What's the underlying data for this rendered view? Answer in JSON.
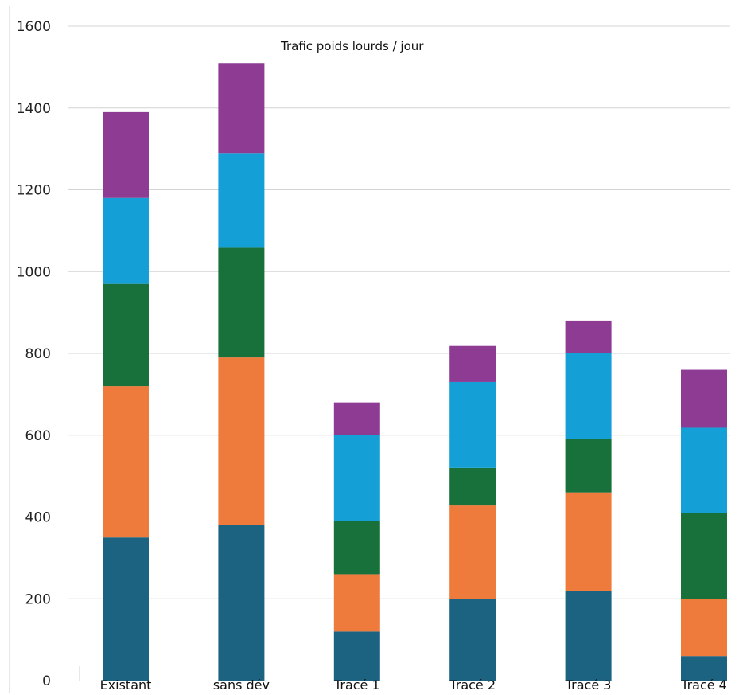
{
  "chart_data": {
    "type": "bar",
    "stacked": true,
    "title": "Trafic poids lourds / jour",
    "xlabel": "",
    "ylabel": "",
    "ylim": [
      0,
      1600
    ],
    "yticks": [
      0,
      200,
      400,
      600,
      800,
      1000,
      1200,
      1400,
      1600
    ],
    "grid": true,
    "legend": "none",
    "categories": [
      "Existant",
      "sans dév",
      "Tracé 1",
      "Tracé 2",
      "Tracé 3",
      "Tracé 4"
    ],
    "series": [
      {
        "color": "#1c6382",
        "values": [
          350,
          380,
          120,
          200,
          220,
          60
        ]
      },
      {
        "color": "#ee7a3c",
        "values": [
          370,
          410,
          140,
          230,
          240,
          140
        ]
      },
      {
        "color": "#18703a",
        "values": [
          250,
          270,
          130,
          90,
          130,
          210
        ]
      },
      {
        "color": "#14a0d6",
        "values": [
          210,
          230,
          210,
          210,
          210,
          210
        ]
      },
      {
        "color": "#8e3b94",
        "values": [
          210,
          220,
          80,
          90,
          80,
          140
        ]
      }
    ]
  }
}
